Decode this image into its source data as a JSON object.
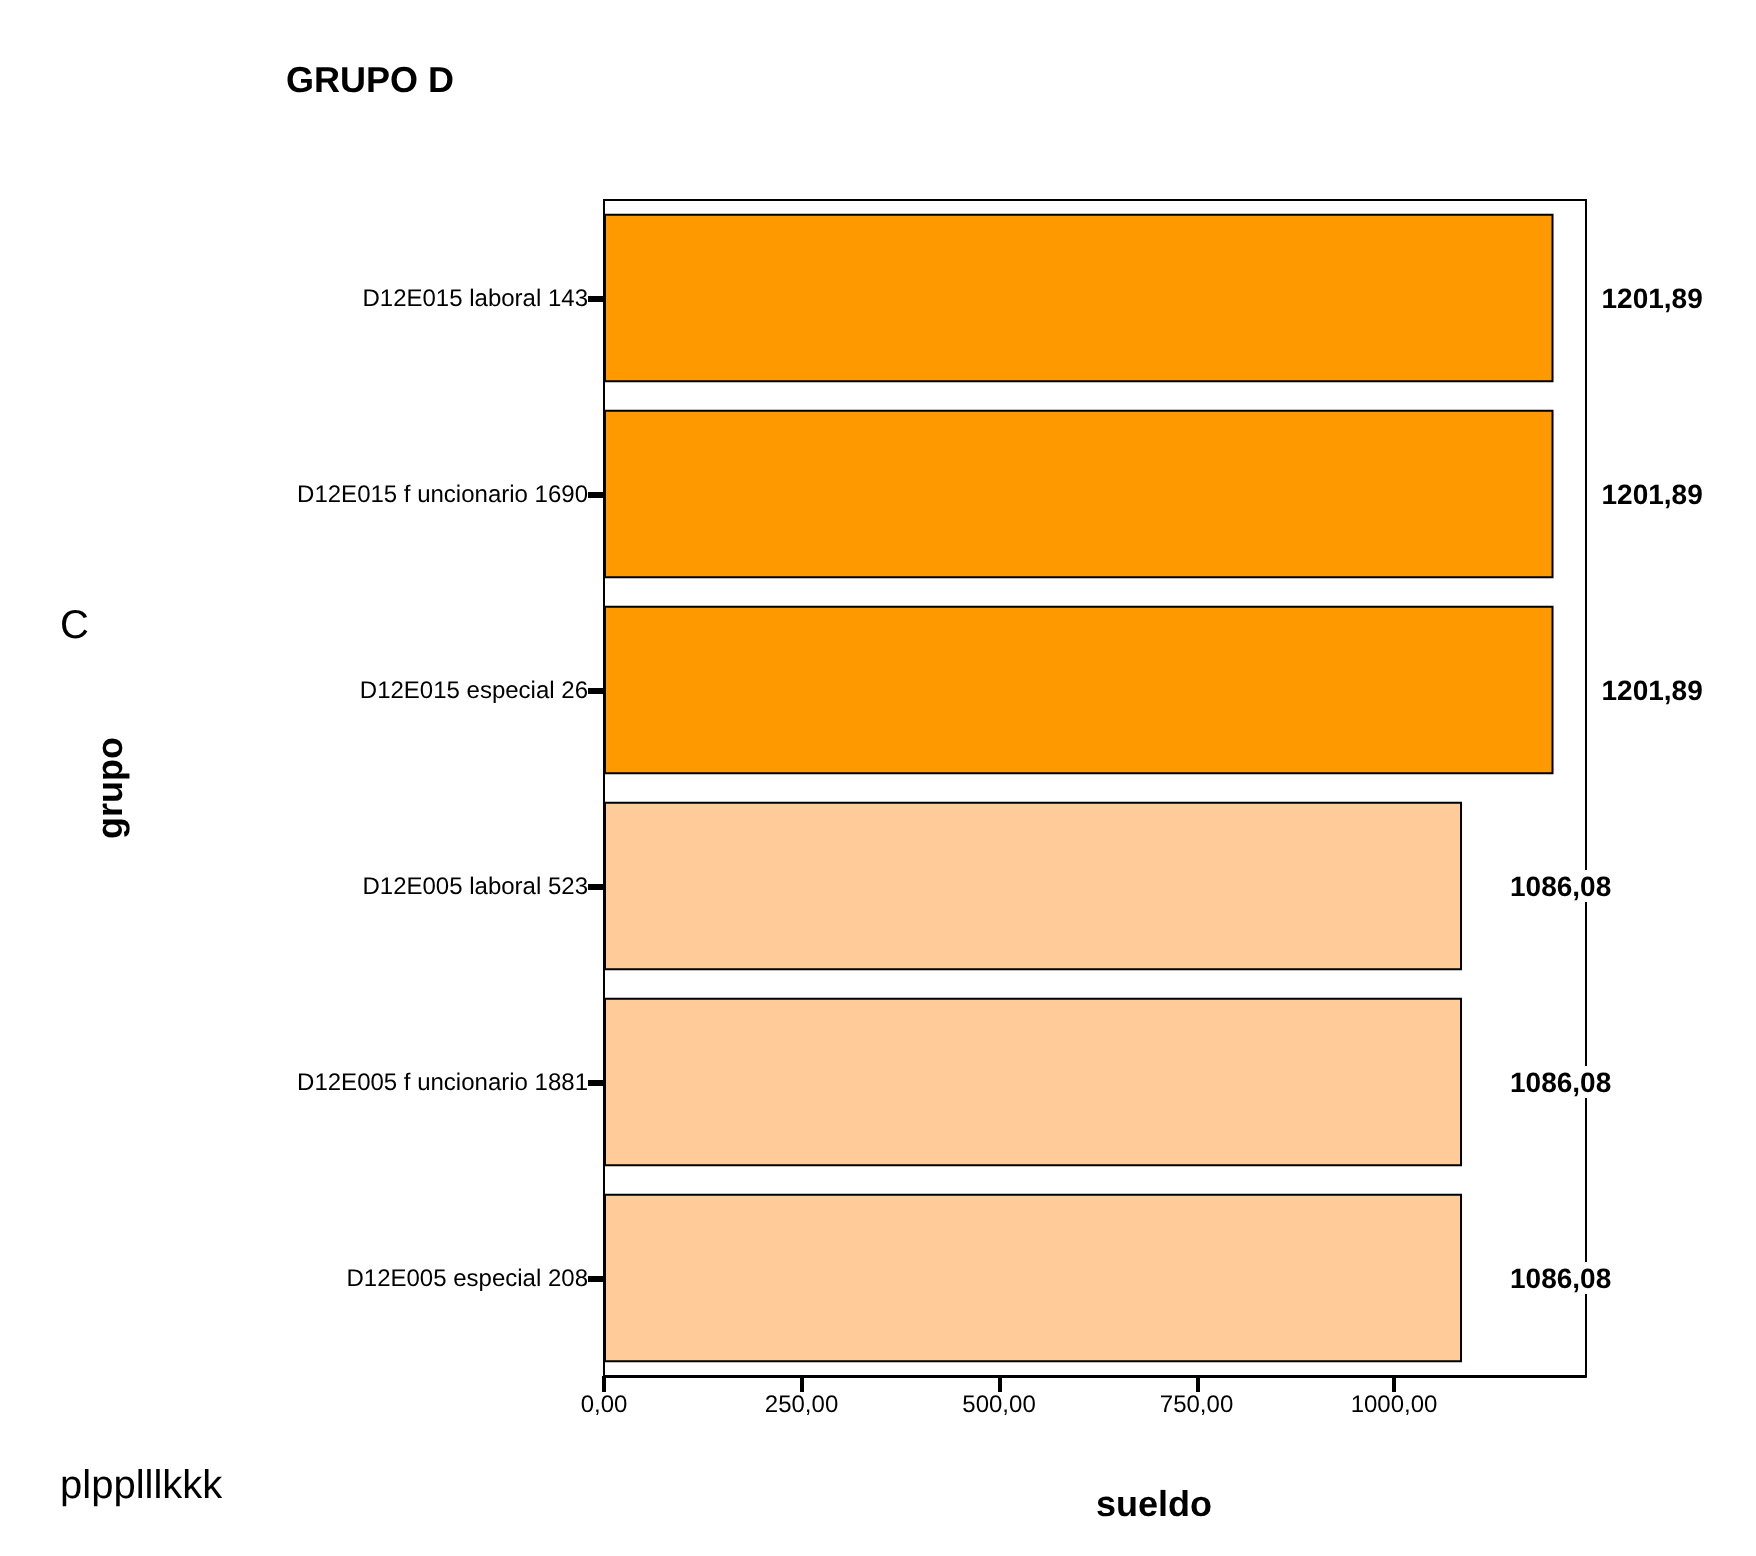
{
  "chart_data": {
    "type": "bar",
    "orientation": "horizontal",
    "title": "GRUPO D",
    "xlabel": "sueldo",
    "ylabel": "grupo",
    "categories": [
      "D12E015 laboral 143",
      "D12E015 f uncionario 1690",
      "D12E015 especial 26",
      "D12E005 laboral 523",
      "D12E005 f uncionario 1881",
      "D12E005 especial 208"
    ],
    "values": [
      1201.89,
      1201.89,
      1201.89,
      1086.08,
      1086.08,
      1086.08
    ],
    "colors": [
      "#ff9900",
      "#ff9900",
      "#ff9900",
      "#ffcc99",
      "#ffcc99",
      "#ffcc99"
    ],
    "value_labels": [
      "1201,89",
      "1201,89",
      "1201,89",
      "1086,08",
      "1086,08",
      "1086,08"
    ],
    "xlim": [
      0,
      1243
    ],
    "xticks": [
      {
        "value": 0,
        "label": "0,00"
      },
      {
        "value": 250,
        "label": "250,00"
      },
      {
        "value": 500,
        "label": "500,00"
      },
      {
        "value": 750,
        "label": "750,00"
      },
      {
        "value": 1000,
        "label": "1000,00"
      }
    ],
    "annotations": [
      "C",
      "plpplllkkk"
    ]
  }
}
